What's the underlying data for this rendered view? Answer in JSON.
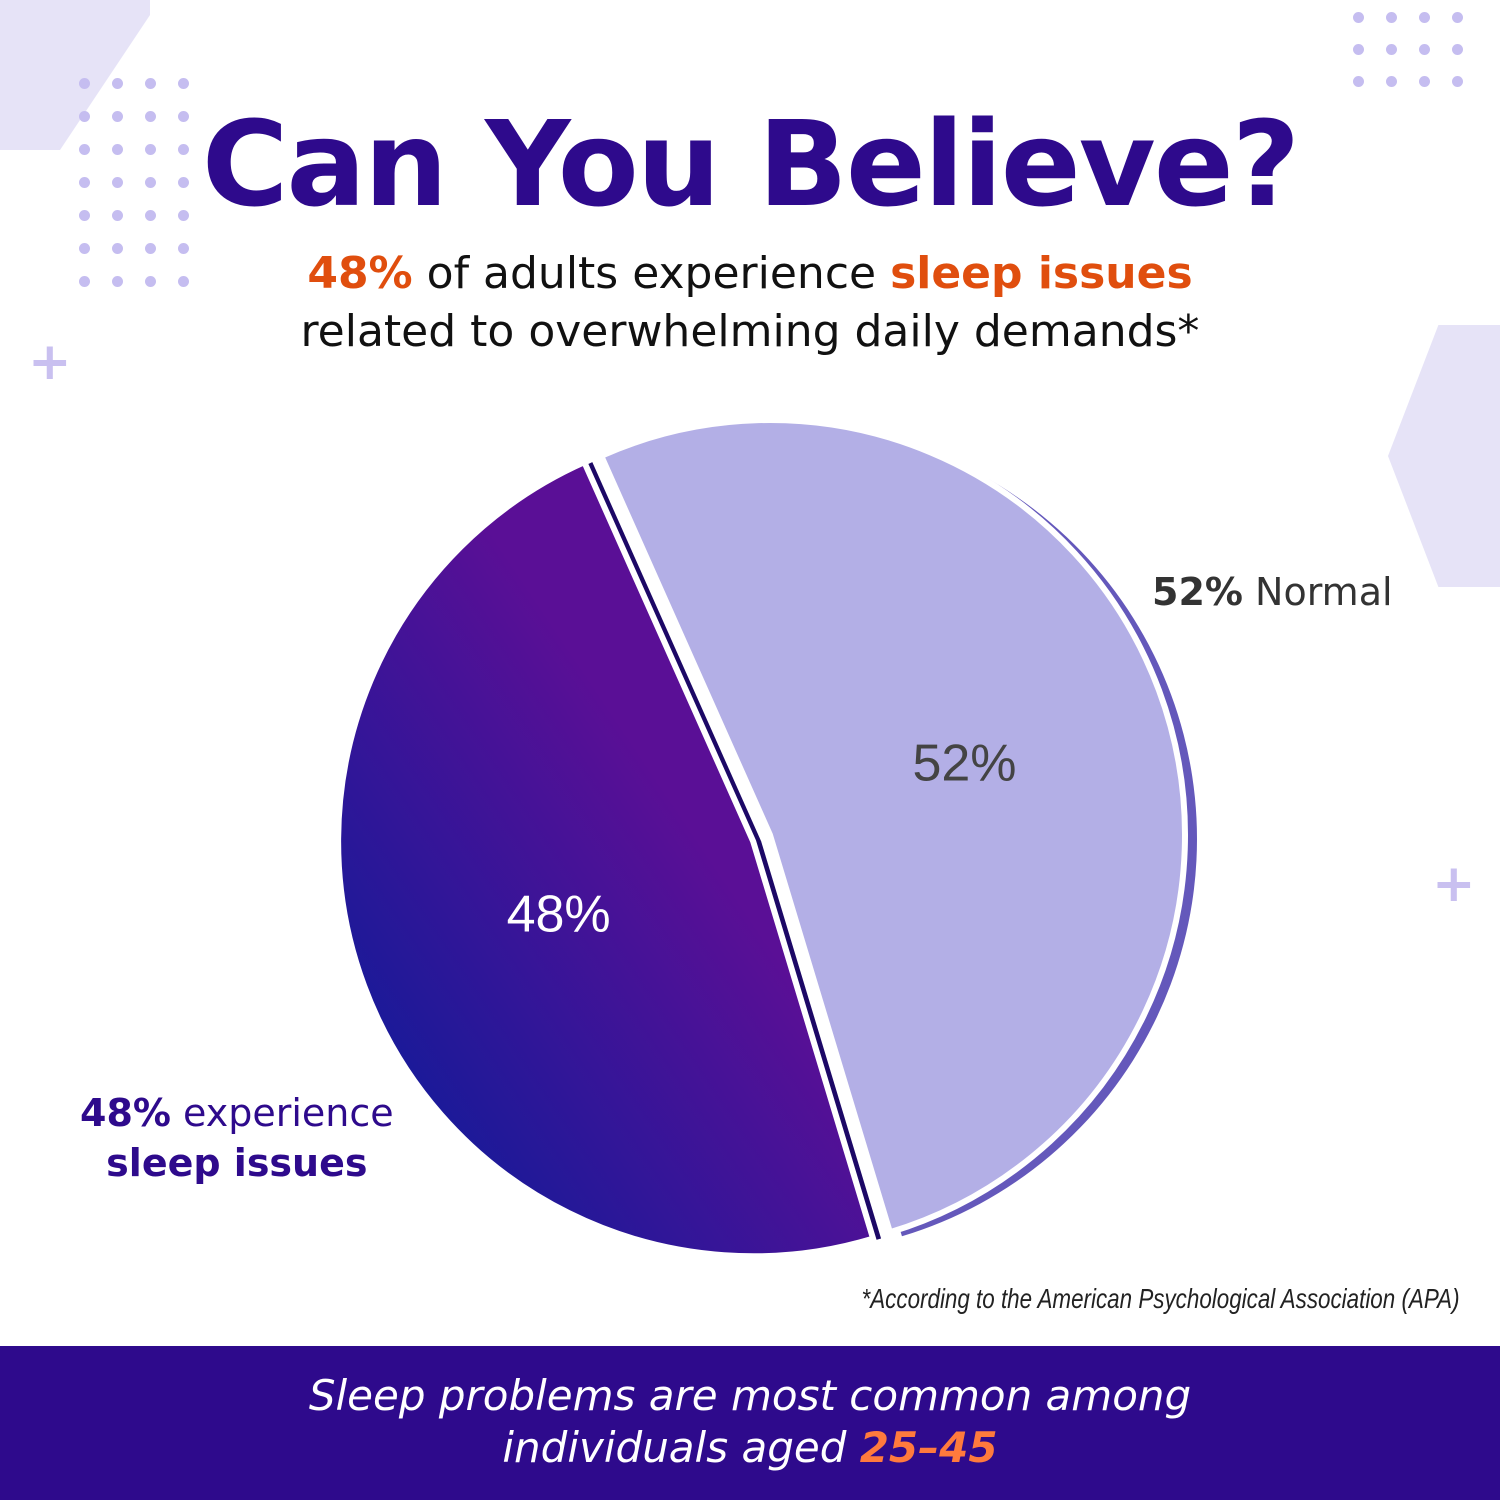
{
  "header": {
    "title": "Can You Believe?",
    "subtitle_line1_highlight1": "48%",
    "subtitle_line1_text": " of adults experience ",
    "subtitle_line1_highlight2": "sleep issues",
    "subtitle_line2": "related to overwhelming daily demands*"
  },
  "chart_data": {
    "type": "pie",
    "slices": [
      {
        "label": "Normal",
        "value": 52,
        "data_label": "52%",
        "color": "#b3afe6",
        "legend_pct": "52%",
        "legend_text": " Normal"
      },
      {
        "label": "experience sleep issues",
        "value": 48,
        "data_label": "48%",
        "color": "#4a128f",
        "legend_pct": "48%",
        "legend_text": " experience",
        "legend_line2": "sleep issues"
      }
    ],
    "exploded": "48%",
    "gradient": [
      "#001e9a",
      "#5a0f96"
    ]
  },
  "note": "*According to the American Psychological Association (APA)",
  "footer": {
    "line1": "Sleep problems are most common among",
    "line2_text": "individuals aged ",
    "line2_highlight": "25–45"
  },
  "colors": {
    "brand": "#2e0a8c",
    "accent": "#e04e0e",
    "footer_accent": "#ff7a3d"
  }
}
